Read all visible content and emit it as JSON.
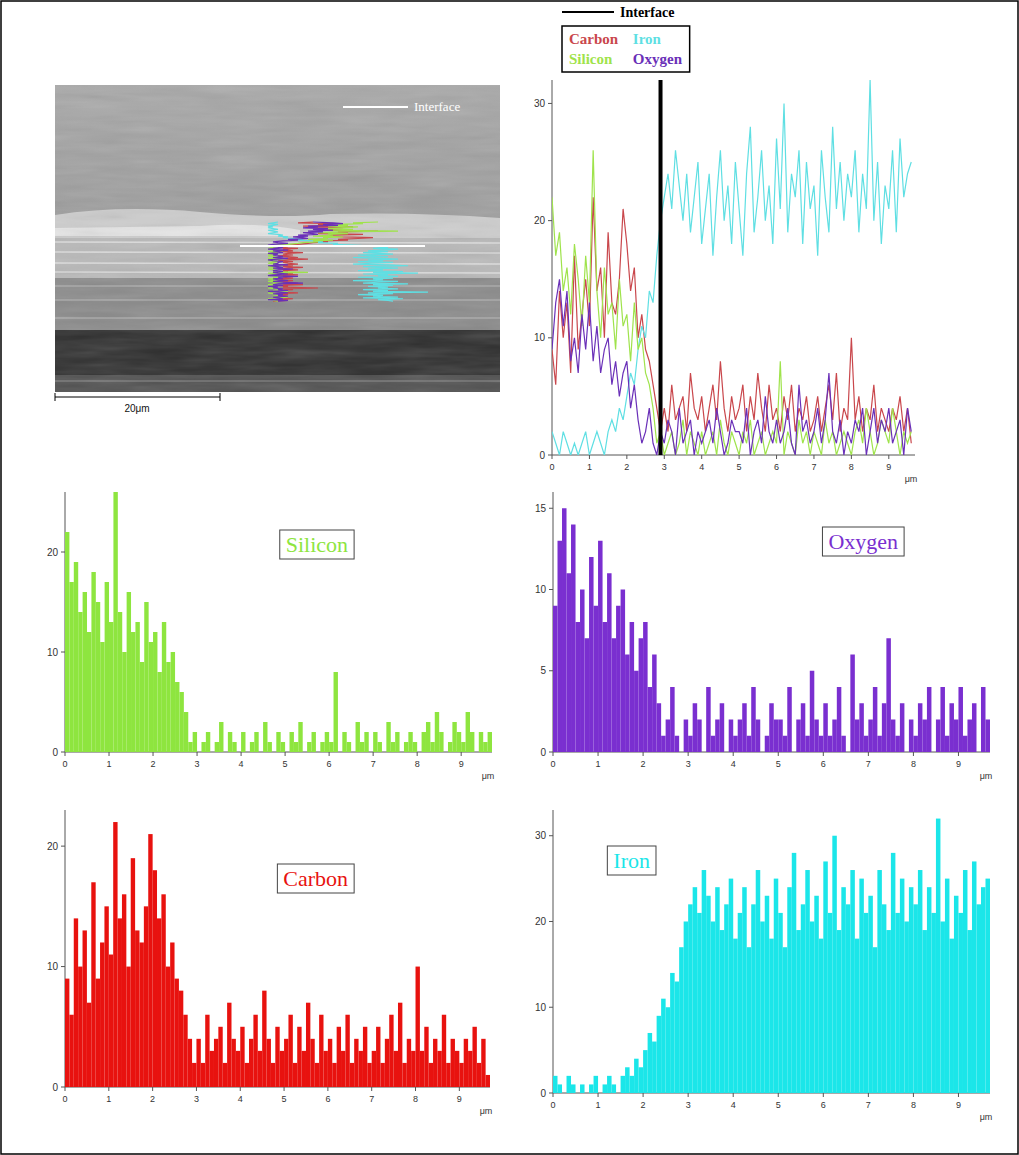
{
  "image": {
    "interface_label": "Interface",
    "scale_bar": "20μm"
  },
  "chart_data": [
    {
      "type": "line",
      "annotation": "Interface",
      "interface": 2.9,
      "legend": "top-left",
      "x": [
        0,
        0.1,
        0.2,
        0.3,
        0.4,
        0.5,
        0.6,
        0.7,
        0.8,
        0.9,
        1,
        1.1,
        1.2,
        1.3,
        1.4,
        1.5,
        1.6,
        1.7,
        1.8,
        1.9,
        2,
        2.1,
        2.2,
        2.3,
        2.4,
        2.5,
        2.6,
        2.7,
        2.8,
        2.9,
        3,
        3.1,
        3.2,
        3.3,
        3.4,
        3.5,
        3.6,
        3.7,
        3.8,
        3.9,
        4,
        4.1,
        4.2,
        4.3,
        4.4,
        4.5,
        4.6,
        4.7,
        4.8,
        4.9,
        5,
        5.1,
        5.2,
        5.3,
        5.4,
        5.5,
        5.6,
        5.7,
        5.8,
        5.9,
        6,
        6.1,
        6.2,
        6.3,
        6.4,
        6.5,
        6.6,
        6.7,
        6.8,
        6.9,
        7,
        7.1,
        7.2,
        7.3,
        7.4,
        7.5,
        7.6,
        7.7,
        7.8,
        7.9,
        8,
        8.1,
        8.2,
        8.3,
        8.4,
        8.5,
        8.6,
        8.7,
        8.8,
        8.9,
        9,
        9.1,
        9.2,
        9.3,
        9.4,
        9.5,
        9.6
      ],
      "xlim": [
        0,
        9.7
      ],
      "xticks": [
        0,
        1,
        2,
        3,
        4,
        5,
        6,
        7,
        8,
        9
      ],
      "xlabel": "μm",
      "ylim": [
        0,
        32
      ],
      "yticks": [
        0,
        10,
        20,
        30
      ],
      "series": [
        {
          "name": "Carbon",
          "color": "#c9474c",
          "values": [
            9,
            6,
            14,
            10,
            13,
            7,
            17,
            9,
            12,
            15,
            11,
            22,
            14,
            16,
            10,
            19,
            13,
            12,
            15,
            21,
            18,
            14,
            16,
            10,
            12,
            9,
            8,
            6,
            4,
            2,
            4,
            2,
            6,
            3,
            4,
            5,
            2,
            7,
            4,
            3,
            5,
            2,
            4,
            6,
            3,
            8,
            4,
            2,
            5,
            3,
            4,
            6,
            2,
            5,
            3,
            7,
            4,
            2,
            6,
            3,
            4,
            2,
            5,
            3,
            6,
            2,
            4,
            3,
            5,
            2,
            3,
            5,
            2,
            4,
            6,
            3,
            7,
            2,
            4,
            3,
            10,
            3,
            5,
            2,
            4,
            3,
            6,
            2,
            4,
            3,
            2,
            4,
            3,
            5,
            2,
            4,
            1
          ]
        },
        {
          "name": "Iron",
          "color": "#5fdfe3",
          "values": [
            2,
            1,
            0,
            2,
            1,
            0,
            1,
            0,
            1,
            2,
            0,
            1,
            2,
            1,
            0,
            2,
            3,
            2,
            4,
            3,
            5,
            7,
            6,
            9,
            11,
            10,
            14,
            13,
            17,
            20,
            22,
            24,
            21,
            26,
            23,
            20,
            24,
            19,
            22,
            25,
            18,
            21,
            24,
            17,
            22,
            26,
            20,
            23,
            18,
            25,
            21,
            17,
            24,
            28,
            19,
            22,
            26,
            20,
            23,
            18,
            27,
            21,
            30,
            19,
            24,
            22,
            26,
            18,
            25,
            21,
            23,
            17,
            26,
            22,
            19,
            28,
            21,
            25,
            20,
            24,
            22,
            26,
            19,
            24,
            21,
            32,
            20,
            25,
            18,
            23,
            21,
            26,
            19,
            27,
            22,
            24,
            25
          ]
        },
        {
          "name": "Silicon",
          "color": "#9fe34c",
          "values": [
            22,
            17,
            19,
            14,
            16,
            12,
            18,
            15,
            11,
            17,
            13,
            26,
            14,
            10,
            16,
            12,
            13,
            9,
            15,
            11,
            12,
            8,
            13,
            9,
            10,
            7,
            6,
            4,
            1,
            2,
            0,
            1,
            2,
            0,
            1,
            3,
            0,
            2,
            1,
            0,
            2,
            0,
            1,
            2,
            0,
            3,
            1,
            0,
            2,
            1,
            0,
            2,
            1,
            3,
            0,
            1,
            2,
            0,
            1,
            2,
            1,
            8,
            0,
            2,
            1,
            0,
            3,
            1,
            2,
            0,
            2,
            1,
            0,
            3,
            1,
            2,
            0,
            1,
            2,
            1,
            0,
            2,
            3,
            1,
            4,
            2,
            0,
            1,
            3,
            2,
            1,
            4,
            2,
            0,
            2,
            1,
            2
          ]
        },
        {
          "name": "Oxygen",
          "color": "#6a30b8",
          "values": [
            9,
            13,
            15,
            11,
            14,
            8,
            10,
            7,
            12,
            9,
            13,
            8,
            11,
            7,
            9,
            10,
            6,
            8,
            5,
            7,
            8,
            4,
            6,
            3,
            1,
            2,
            4,
            1,
            0,
            2,
            1,
            3,
            2,
            0,
            4,
            1,
            2,
            3,
            0,
            2,
            1,
            2,
            3,
            1,
            4,
            2,
            0,
            1,
            3,
            2,
            2,
            1,
            4,
            0,
            2,
            3,
            1,
            5,
            2,
            1,
            3,
            1,
            2,
            4,
            1,
            0,
            6,
            2,
            3,
            1,
            2,
            4,
            1,
            3,
            7,
            2,
            1,
            3,
            0,
            2,
            1,
            3,
            2,
            4,
            0,
            2,
            4,
            1,
            3,
            2,
            4,
            1,
            2,
            3,
            0,
            4,
            2
          ]
        }
      ]
    },
    {
      "type": "histogram",
      "title": "Silicon",
      "color": "#8ee53f",
      "bins": [
        0,
        0.1,
        0.2,
        0.3,
        0.4,
        0.5,
        0.6,
        0.7,
        0.8,
        0.9,
        1,
        1.1,
        1.2,
        1.3,
        1.4,
        1.5,
        1.6,
        1.7,
        1.8,
        1.9,
        2,
        2.1,
        2.2,
        2.3,
        2.4,
        2.5,
        2.6,
        2.7,
        2.8,
        2.9,
        3,
        3.1,
        3.2,
        3.3,
        3.4,
        3.5,
        3.6,
        3.7,
        3.8,
        3.9,
        4,
        4.1,
        4.2,
        4.3,
        4.4,
        4.5,
        4.6,
        4.7,
        4.8,
        4.9,
        5,
        5.1,
        5.2,
        5.3,
        5.4,
        5.5,
        5.6,
        5.7,
        5.8,
        5.9,
        6,
        6.1,
        6.2,
        6.3,
        6.4,
        6.5,
        6.6,
        6.7,
        6.8,
        6.9,
        7,
        7.1,
        7.2,
        7.3,
        7.4,
        7.5,
        7.6,
        7.7,
        7.8,
        7.9,
        8,
        8.1,
        8.2,
        8.3,
        8.4,
        8.5,
        8.6,
        8.7,
        8.8,
        8.9,
        9,
        9.1,
        9.2,
        9.3,
        9.4,
        9.5,
        9.6,
        9.7
      ],
      "values": [
        22,
        17,
        19,
        14,
        16,
        12,
        18,
        15,
        11,
        17,
        13,
        26,
        14,
        10,
        16,
        12,
        13,
        9,
        15,
        11,
        12,
        8,
        13,
        9,
        10,
        7,
        6,
        4,
        1,
        2,
        0,
        1,
        2,
        0,
        1,
        3,
        0,
        2,
        1,
        0,
        2,
        0,
        1,
        2,
        0,
        3,
        1,
        0,
        2,
        1,
        0,
        2,
        1,
        3,
        0,
        1,
        2,
        0,
        1,
        2,
        1,
        8,
        0,
        2,
        1,
        0,
        3,
        1,
        2,
        0,
        2,
        1,
        0,
        3,
        1,
        2,
        0,
        1,
        2,
        1,
        0,
        2,
        3,
        1,
        4,
        2,
        0,
        1,
        3,
        2,
        1,
        4,
        2,
        0,
        2,
        1,
        2
      ],
      "xlim": [
        0,
        9.7
      ],
      "xticks": [
        0,
        1,
        2,
        3,
        4,
        5,
        6,
        7,
        8,
        9
      ],
      "xlabel": "μm",
      "ylim": [
        0,
        26
      ],
      "yticks": [
        0,
        10,
        20
      ]
    },
    {
      "type": "histogram",
      "title": "Oxygen",
      "color": "#7a2fd0",
      "bins": [
        0,
        0.1,
        0.2,
        0.3,
        0.4,
        0.5,
        0.6,
        0.7,
        0.8,
        0.9,
        1,
        1.1,
        1.2,
        1.3,
        1.4,
        1.5,
        1.6,
        1.7,
        1.8,
        1.9,
        2,
        2.1,
        2.2,
        2.3,
        2.4,
        2.5,
        2.6,
        2.7,
        2.8,
        2.9,
        3,
        3.1,
        3.2,
        3.3,
        3.4,
        3.5,
        3.6,
        3.7,
        3.8,
        3.9,
        4,
        4.1,
        4.2,
        4.3,
        4.4,
        4.5,
        4.6,
        4.7,
        4.8,
        4.9,
        5,
        5.1,
        5.2,
        5.3,
        5.4,
        5.5,
        5.6,
        5.7,
        5.8,
        5.9,
        6,
        6.1,
        6.2,
        6.3,
        6.4,
        6.5,
        6.6,
        6.7,
        6.8,
        6.9,
        7,
        7.1,
        7.2,
        7.3,
        7.4,
        7.5,
        7.6,
        7.7,
        7.8,
        7.9,
        8,
        8.1,
        8.2,
        8.3,
        8.4,
        8.5,
        8.6,
        8.7,
        8.8,
        8.9,
        9,
        9.1,
        9.2,
        9.3,
        9.4,
        9.5,
        9.6,
        9.7
      ],
      "values": [
        9,
        13,
        15,
        11,
        14,
        8,
        10,
        7,
        12,
        9,
        13,
        8,
        11,
        7,
        9,
        10,
        6,
        8,
        5,
        7,
        8,
        4,
        6,
        3,
        1,
        2,
        4,
        1,
        0,
        2,
        1,
        3,
        2,
        0,
        4,
        1,
        2,
        3,
        0,
        2,
        1,
        2,
        3,
        1,
        4,
        2,
        0,
        1,
        3,
        2,
        2,
        1,
        4,
        0,
        2,
        3,
        1,
        5,
        2,
        1,
        3,
        1,
        2,
        4,
        1,
        0,
        6,
        2,
        3,
        1,
        2,
        4,
        1,
        3,
        7,
        2,
        1,
        3,
        0,
        2,
        1,
        3,
        2,
        4,
        0,
        2,
        4,
        1,
        3,
        2,
        4,
        1,
        2,
        3,
        0,
        4,
        2
      ],
      "xlim": [
        0,
        9.7
      ],
      "xticks": [
        0,
        1,
        2,
        3,
        4,
        5,
        6,
        7,
        8,
        9
      ],
      "xlabel": "μm",
      "ylim": [
        0,
        16
      ],
      "yticks": [
        0,
        5,
        10,
        15
      ]
    },
    {
      "type": "histogram",
      "title": "Carbon",
      "color": "#e8120f",
      "bins": [
        0,
        0.1,
        0.2,
        0.3,
        0.4,
        0.5,
        0.6,
        0.7,
        0.8,
        0.9,
        1,
        1.1,
        1.2,
        1.3,
        1.4,
        1.5,
        1.6,
        1.7,
        1.8,
        1.9,
        2,
        2.1,
        2.2,
        2.3,
        2.4,
        2.5,
        2.6,
        2.7,
        2.8,
        2.9,
        3,
        3.1,
        3.2,
        3.3,
        3.4,
        3.5,
        3.6,
        3.7,
        3.8,
        3.9,
        4,
        4.1,
        4.2,
        4.3,
        4.4,
        4.5,
        4.6,
        4.7,
        4.8,
        4.9,
        5,
        5.1,
        5.2,
        5.3,
        5.4,
        5.5,
        5.6,
        5.7,
        5.8,
        5.9,
        6,
        6.1,
        6.2,
        6.3,
        6.4,
        6.5,
        6.6,
        6.7,
        6.8,
        6.9,
        7,
        7.1,
        7.2,
        7.3,
        7.4,
        7.5,
        7.6,
        7.7,
        7.8,
        7.9,
        8,
        8.1,
        8.2,
        8.3,
        8.4,
        8.5,
        8.6,
        8.7,
        8.8,
        8.9,
        9,
        9.1,
        9.2,
        9.3,
        9.4,
        9.5,
        9.6,
        9.7
      ],
      "values": [
        9,
        6,
        14,
        10,
        13,
        7,
        17,
        9,
        12,
        15,
        11,
        22,
        14,
        16,
        10,
        19,
        13,
        12,
        15,
        21,
        18,
        14,
        16,
        10,
        12,
        9,
        8,
        6,
        4,
        2,
        4,
        2,
        6,
        3,
        4,
        5,
        2,
        7,
        4,
        3,
        5,
        2,
        4,
        6,
        3,
        8,
        4,
        2,
        5,
        3,
        4,
        6,
        2,
        5,
        3,
        7,
        4,
        2,
        6,
        3,
        4,
        2,
        5,
        3,
        6,
        2,
        4,
        3,
        5,
        2,
        3,
        5,
        2,
        4,
        6,
        3,
        7,
        2,
        4,
        3,
        10,
        3,
        5,
        2,
        4,
        3,
        6,
        2,
        4,
        3,
        2,
        4,
        3,
        5,
        2,
        4,
        1
      ],
      "xlim": [
        0,
        9.7
      ],
      "xticks": [
        0,
        1,
        2,
        3,
        4,
        5,
        6,
        7,
        8,
        9
      ],
      "xlabel": "μm",
      "ylim": [
        0,
        23
      ],
      "yticks": [
        0,
        10,
        20
      ]
    },
    {
      "type": "histogram",
      "title": "Iron",
      "color": "#1be6e9",
      "bins": [
        0,
        0.1,
        0.2,
        0.3,
        0.4,
        0.5,
        0.6,
        0.7,
        0.8,
        0.9,
        1,
        1.1,
        1.2,
        1.3,
        1.4,
        1.5,
        1.6,
        1.7,
        1.8,
        1.9,
        2,
        2.1,
        2.2,
        2.3,
        2.4,
        2.5,
        2.6,
        2.7,
        2.8,
        2.9,
        3,
        3.1,
        3.2,
        3.3,
        3.4,
        3.5,
        3.6,
        3.7,
        3.8,
        3.9,
        4,
        4.1,
        4.2,
        4.3,
        4.4,
        4.5,
        4.6,
        4.7,
        4.8,
        4.9,
        5,
        5.1,
        5.2,
        5.3,
        5.4,
        5.5,
        5.6,
        5.7,
        5.8,
        5.9,
        6,
        6.1,
        6.2,
        6.3,
        6.4,
        6.5,
        6.6,
        6.7,
        6.8,
        6.9,
        7,
        7.1,
        7.2,
        7.3,
        7.4,
        7.5,
        7.6,
        7.7,
        7.8,
        7.9,
        8,
        8.1,
        8.2,
        8.3,
        8.4,
        8.5,
        8.6,
        8.7,
        8.8,
        8.9,
        9,
        9.1,
        9.2,
        9.3,
        9.4,
        9.5,
        9.6,
        9.7
      ],
      "values": [
        2,
        1,
        0,
        2,
        1,
        0,
        1,
        0,
        1,
        2,
        0,
        1,
        2,
        1,
        0,
        2,
        3,
        2,
        4,
        3,
        5,
        7,
        6,
        9,
        11,
        10,
        14,
        13,
        17,
        20,
        22,
        24,
        21,
        26,
        23,
        20,
        24,
        19,
        22,
        25,
        18,
        21,
        24,
        17,
        22,
        26,
        20,
        23,
        18,
        25,
        21,
        17,
        24,
        28,
        19,
        22,
        26,
        20,
        23,
        18,
        27,
        21,
        30,
        19,
        24,
        22,
        26,
        18,
        25,
        21,
        23,
        17,
        26,
        22,
        19,
        28,
        21,
        25,
        20,
        24,
        22,
        26,
        19,
        24,
        21,
        32,
        20,
        25,
        18,
        23,
        21,
        26,
        19,
        27,
        22,
        24,
        25
      ],
      "xlim": [
        0,
        9.7
      ],
      "xticks": [
        0,
        1,
        2,
        3,
        4,
        5,
        6,
        7,
        8,
        9
      ],
      "xlabel": "μm",
      "ylim": [
        0,
        33
      ],
      "yticks": [
        0,
        10,
        20,
        30
      ]
    }
  ]
}
